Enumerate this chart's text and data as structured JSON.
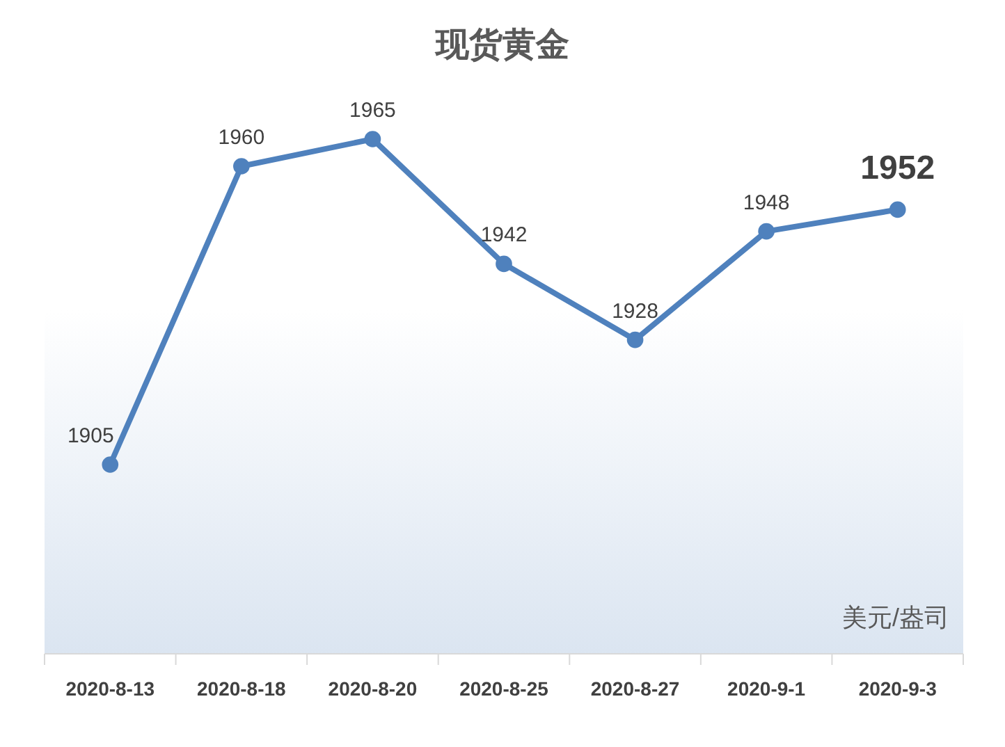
{
  "chart_data": {
    "type": "line",
    "title": "现货黄金",
    "categories": [
      "2020-8-13",
      "2020-8-18",
      "2020-8-20",
      "2020-8-25",
      "2020-8-27",
      "2020-9-1",
      "2020-9-3"
    ],
    "series": [
      {
        "color": "#4f81bd",
        "values": [
          1905,
          1960,
          1965,
          1942,
          1928,
          1948,
          1952
        ]
      }
    ],
    "tick_labels": "x",
    "data_labels": true,
    "marker": "circle",
    "line_style": "solid",
    "annotations": [
      "美元/盎司"
    ]
  }
}
